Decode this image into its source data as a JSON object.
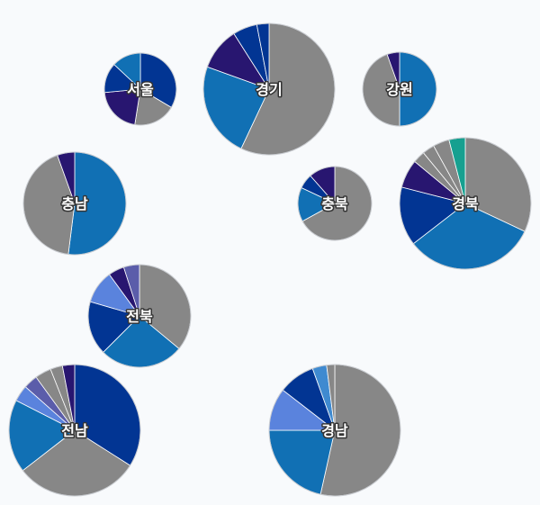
{
  "chart_data": {
    "type": "pie",
    "title": "",
    "palette": {
      "gray": "#878787",
      "blue": "#1170b4",
      "navy": "#023593",
      "indigo": "#281670",
      "periwinkle": "#5a83dd",
      "slate": "#5b5daa",
      "sky": "#3f8ad0",
      "teal": "#16a090"
    },
    "pies": [
      {
        "label": "서울",
        "slices": [
          {
            "value": 0.335,
            "color": "#023593"
          },
          {
            "value": 0.19,
            "color": "#878787"
          },
          {
            "value": 0.21,
            "color": "#281670"
          },
          {
            "value": 0.135,
            "color": "#023593"
          },
          {
            "value": 0.13,
            "color": "#1170b4"
          }
        ]
      },
      {
        "label": "경기",
        "slices": [
          {
            "value": 0.57,
            "color": "#878787"
          },
          {
            "value": 0.235,
            "color": "#1170b4"
          },
          {
            "value": 0.105,
            "color": "#281670"
          },
          {
            "value": 0.06,
            "color": "#023593"
          },
          {
            "value": 0.03,
            "color": "#023593"
          }
        ]
      },
      {
        "label": "강원",
        "slices": [
          {
            "value": 0.5,
            "color": "#1170b4"
          },
          {
            "value": 0.445,
            "color": "#878787"
          },
          {
            "value": 0.055,
            "color": "#281670"
          }
        ]
      },
      {
        "label": "충남",
        "slices": [
          {
            "value": 0.52,
            "color": "#1170b4"
          },
          {
            "value": 0.425,
            "color": "#878787"
          },
          {
            "value": 0.055,
            "color": "#281670"
          }
        ]
      },
      {
        "label": "충북",
        "slices": [
          {
            "value": 0.67,
            "color": "#878787"
          },
          {
            "value": 0.15,
            "color": "#1170b4"
          },
          {
            "value": 0.065,
            "color": "#023593"
          },
          {
            "value": 0.115,
            "color": "#281670"
          }
        ]
      },
      {
        "label": "경북",
        "slices": [
          {
            "value": 0.32,
            "color": "#878787"
          },
          {
            "value": 0.325,
            "color": "#1170b4"
          },
          {
            "value": 0.145,
            "color": "#023593"
          },
          {
            "value": 0.07,
            "color": "#281670"
          },
          {
            "value": 0.03,
            "color": "#878787"
          },
          {
            "value": 0.03,
            "color": "#878787"
          },
          {
            "value": 0.04,
            "color": "#878787"
          },
          {
            "value": 0.04,
            "color": "#16a090"
          }
        ]
      },
      {
        "label": "전북",
        "slices": [
          {
            "value": 0.36,
            "color": "#878787"
          },
          {
            "value": 0.265,
            "color": "#1170b4"
          },
          {
            "value": 0.17,
            "color": "#023593"
          },
          {
            "value": 0.105,
            "color": "#5a83dd"
          },
          {
            "value": 0.05,
            "color": "#281670"
          },
          {
            "value": 0.05,
            "color": "#5b5daa"
          }
        ]
      },
      {
        "label": "전남",
        "slices": [
          {
            "value": 0.34,
            "color": "#023593"
          },
          {
            "value": 0.305,
            "color": "#878787"
          },
          {
            "value": 0.18,
            "color": "#1170b4"
          },
          {
            "value": 0.04,
            "color": "#5a83dd"
          },
          {
            "value": 0.035,
            "color": "#5b5daa"
          },
          {
            "value": 0.04,
            "color": "#878787"
          },
          {
            "value": 0.03,
            "color": "#878787"
          },
          {
            "value": 0.03,
            "color": "#281670"
          }
        ]
      },
      {
        "label": "경남",
        "slices": [
          {
            "value": 0.535,
            "color": "#878787"
          },
          {
            "value": 0.215,
            "color": "#1170b4"
          },
          {
            "value": 0.105,
            "color": "#5a83dd"
          },
          {
            "value": 0.09,
            "color": "#023593"
          },
          {
            "value": 0.035,
            "color": "#3f8ad0"
          },
          {
            "value": 0.02,
            "color": "#878787"
          }
        ]
      }
    ]
  }
}
